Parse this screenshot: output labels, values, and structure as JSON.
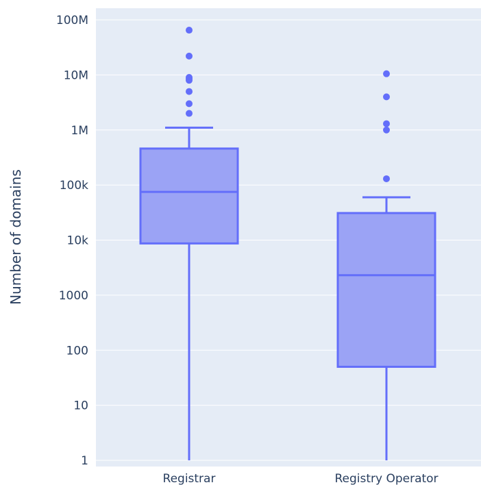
{
  "chart_data": {
    "type": "box",
    "ylabel": "Number of domains",
    "xlabel": "",
    "yscale": "log",
    "ylim": [
      1,
      100000000
    ],
    "grid": true,
    "yticks": [
      {
        "value": 1,
        "label": "1"
      },
      {
        "value": 10,
        "label": "10"
      },
      {
        "value": 100,
        "label": "100"
      },
      {
        "value": 1000,
        "label": "1000"
      },
      {
        "value": 10000,
        "label": "10k"
      },
      {
        "value": 100000,
        "label": "100k"
      },
      {
        "value": 1000000,
        "label": "1M"
      },
      {
        "value": 10000000,
        "label": "10M"
      },
      {
        "value": 100000000,
        "label": "100M"
      }
    ],
    "categories": [
      "Registrar",
      "Registry Operator"
    ],
    "boxes": [
      {
        "category": "Registrar",
        "min": 1,
        "q1": 8700,
        "median": 75000,
        "q3": 460000,
        "max": 1100000,
        "outliers": [
          65000000,
          22000000,
          9000000,
          8500000,
          8000000,
          5000000,
          3000000,
          2000000
        ]
      },
      {
        "category": "Registry Operator",
        "min": 1,
        "q1": 50,
        "median": 2300,
        "q3": 31000,
        "max": 60000,
        "outliers": [
          10500000,
          4000000,
          1300000,
          1000000,
          130000
        ]
      }
    ],
    "colors": {
      "line": "#636efa",
      "fill": "#9ba3f5",
      "plot_bg": "#e5ecf6",
      "grid": "#ffffff",
      "text": "#2a3f5f"
    }
  }
}
